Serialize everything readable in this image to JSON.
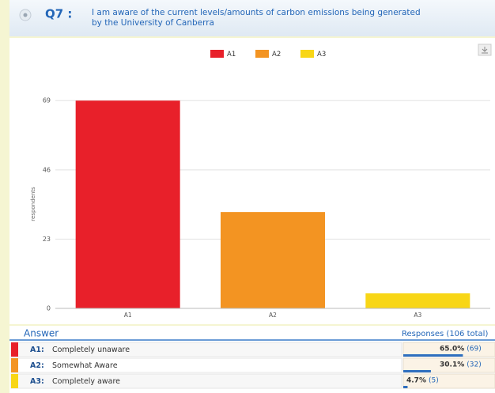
{
  "header": {
    "number": "Q7 :",
    "question_lines": [
      "I am aware of the current levels/amounts of carbon emissions being generated",
      "by the University of Canberra"
    ]
  },
  "chart_data": {
    "type": "bar",
    "categories": [
      "A1",
      "A2",
      "A3"
    ],
    "values": [
      69,
      32,
      5
    ],
    "colors": [
      "#e8202a",
      "#f39422",
      "#f8d616"
    ],
    "ylabel": "respondents",
    "ylim": [
      0,
      73
    ],
    "yticks": [
      0,
      23,
      46,
      69
    ],
    "grid": true,
    "legend": "top"
  },
  "table": {
    "header": [
      "Answer",
      "Responses (106 total)"
    ],
    "rows": [
      {
        "code": "A1:",
        "answer": "Completely unaware",
        "percent": 65.0,
        "percent_label": "65.0%",
        "count_label": "(69)"
      },
      {
        "code": "A2:",
        "answer": "Somewhat Aware",
        "percent": 30.1,
        "percent_label": "30.1%",
        "count_label": "(32)"
      },
      {
        "code": "A3:",
        "answer": "Completely aware",
        "percent": 4.7,
        "percent_label": "4.7%",
        "count_label": "(5)"
      }
    ]
  }
}
